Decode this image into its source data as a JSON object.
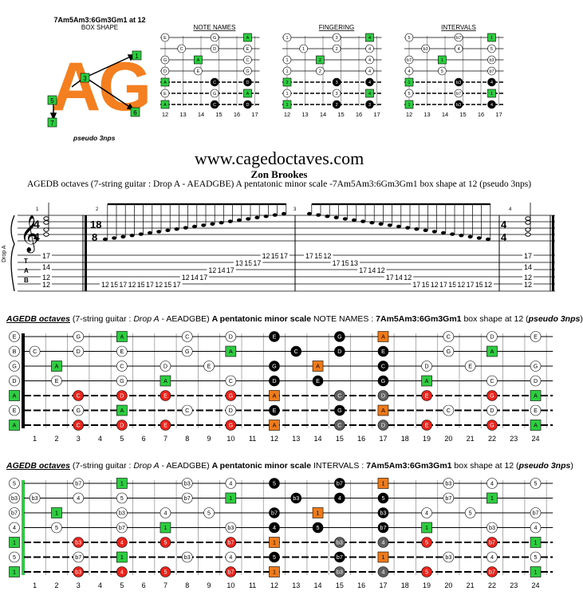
{
  "header": {
    "box_code": "7Am5Am3:6Gm3Gm1 at 12",
    "box_shape": "BOX SHAPE",
    "big_letters": "AG",
    "pseudo": "pseudo 3nps",
    "box_nums": [
      "1",
      "3",
      "5",
      "7",
      "6"
    ]
  },
  "mini": [
    {
      "title": "NOTE NAMES",
      "strings": [
        [
          [
            "E",
            "w"
          ],
          [
            "G",
            "w"
          ],
          [
            "A",
            "g"
          ]
        ],
        [
          [
            "C",
            "w"
          ],
          [
            "D",
            "w"
          ],
          [
            "E",
            "w"
          ]
        ],
        [
          [
            "G",
            "w"
          ],
          [
            "A",
            "g"
          ],
          [
            "C",
            "w"
          ]
        ],
        [
          [
            "D",
            "w"
          ],
          [
            "E",
            "w"
          ],
          [
            "G",
            "w"
          ]
        ],
        [
          [
            "A",
            "g"
          ],
          [
            "C",
            "k"
          ],
          [
            "D",
            "k"
          ]
        ],
        [
          [
            "E",
            "w"
          ],
          [
            "G",
            "w"
          ],
          [
            "A",
            "g"
          ]
        ],
        [
          [
            "A",
            "g"
          ],
          [
            "C",
            "k"
          ],
          [
            "D",
            "k"
          ]
        ]
      ]
    },
    {
      "title": "FINGERING",
      "strings": [
        [
          [
            "1",
            "w"
          ],
          [
            "3",
            "w"
          ],
          [
            "4",
            "g"
          ]
        ],
        [
          [
            "1",
            "w"
          ],
          [
            "2",
            "w"
          ],
          [
            "4",
            "w"
          ]
        ],
        [
          [
            "1",
            "w"
          ],
          [
            "2",
            "g"
          ],
          [
            "4",
            "w"
          ]
        ],
        [
          [
            "1",
            "w"
          ],
          [
            "2",
            "w"
          ],
          [
            "4",
            "w"
          ]
        ],
        [
          [
            "2",
            "g"
          ],
          [
            "3",
            "k"
          ],
          [
            "4",
            "k"
          ]
        ],
        [
          [
            "1",
            "w"
          ],
          [
            "3",
            "w"
          ],
          [
            "4",
            "g"
          ]
        ],
        [
          [
            "1",
            "g"
          ],
          [
            "2",
            "k"
          ],
          [
            "3",
            "k"
          ]
        ]
      ]
    },
    {
      "title": "INTERVALS",
      "strings": [
        [
          [
            "5",
            "w"
          ],
          [
            "b7",
            "w"
          ],
          [
            "1",
            "g"
          ]
        ],
        [
          [
            "b3",
            "w"
          ],
          [
            "4",
            "w"
          ],
          [
            "5",
            "w"
          ]
        ],
        [
          [
            "b7",
            "w"
          ],
          [
            "1",
            "g"
          ],
          [
            "b3",
            "w"
          ]
        ],
        [
          [
            "4",
            "w"
          ],
          [
            "5",
            "w"
          ],
          [
            "b7",
            "w"
          ]
        ],
        [
          [
            "1",
            "g"
          ],
          [
            "b3",
            "k"
          ],
          [
            "4",
            "k"
          ]
        ],
        [
          [
            "5",
            "w"
          ],
          [
            "b7",
            "w"
          ],
          [
            "1",
            "g"
          ]
        ],
        [
          [
            "1",
            "g"
          ],
          [
            "b3",
            "k"
          ],
          [
            "4",
            "k"
          ]
        ]
      ]
    }
  ],
  "mini_frets": [
    "12",
    "13",
    "14",
    "15",
    "16",
    "17"
  ],
  "site": "www.cagedoctaves.com",
  "author": "Zon Brookes",
  "description": "AGEDB octaves (7-string guitar : Drop A - AEADGBE) A pentatonic minor scale -7Am5Am3:6Gm3Gm1 box shape at 12 (pseudo 3nps)",
  "score": {
    "time_top": "4",
    "time_bot": "4",
    "time2_top": "18",
    "time2_bot": "8",
    "tuning": "Drop A",
    "measure_nums": [
      "1",
      "2",
      "3",
      "4"
    ],
    "m1": [
      "17",
      "14",
      "12",
      "12"
    ],
    "m2": [
      "12",
      "15",
      "17",
      "12",
      "15",
      "17",
      "12",
      "15",
      "17",
      "12",
      "14",
      "17",
      "12",
      "14",
      "17",
      "13",
      "15",
      "17",
      "12",
      "15",
      "17"
    ],
    "m3": [
      "17",
      "15",
      "12",
      "17",
      "15",
      "13",
      "17",
      "14",
      "12",
      "17",
      "14",
      "12",
      "17",
      "15",
      "12",
      "17",
      "15",
      "12",
      "17",
      "15",
      "12"
    ],
    "m4": [
      "17",
      "14",
      "12",
      "12"
    ]
  },
  "board1": {
    "t1": "AGEDB octaves",
    "t2": " (7-string guitar : ",
    "t3": "Drop A",
    "t4": " - AEADGBE) ",
    "t5": "A pentatonic minor scale",
    "t6": " NOTE NAMES : ",
    "t7": "7Am5Am3:6Gm3Gm1",
    "t8": " box shape at 12 (",
    "t9": "pseudo 3nps",
    "t10": ")",
    "open": [
      "E",
      "B",
      "G",
      "D",
      "A",
      "E",
      "A"
    ],
    "notes": [
      [
        [
          3,
          "G",
          "w"
        ],
        [
          5,
          "A",
          "g"
        ],
        [
          8,
          "C",
          "w"
        ],
        [
          10,
          "D",
          "w"
        ],
        [
          12,
          "E",
          "k"
        ],
        [
          15,
          "G",
          "k"
        ],
        [
          17,
          "A",
          "o"
        ],
        [
          20,
          "C",
          "w"
        ],
        [
          22,
          "D",
          "w"
        ],
        [
          24,
          "E",
          "w"
        ]
      ],
      [
        [
          1,
          "C",
          "w"
        ],
        [
          3,
          "D",
          "w"
        ],
        [
          5,
          "E",
          "w"
        ],
        [
          8,
          "G",
          "w"
        ],
        [
          10,
          "A",
          "g"
        ],
        [
          13,
          "C",
          "k"
        ],
        [
          15,
          "D",
          "k"
        ],
        [
          17,
          "E",
          "k"
        ],
        [
          20,
          "G",
          "w"
        ],
        [
          22,
          "A",
          "g"
        ]
      ],
      [
        [
          2,
          "A",
          "g"
        ],
        [
          5,
          "C",
          "w"
        ],
        [
          7,
          "D",
          "w"
        ],
        [
          9,
          "E",
          "w"
        ],
        [
          12,
          "G",
          "k"
        ],
        [
          14,
          "A",
          "o"
        ],
        [
          17,
          "C",
          "k"
        ],
        [
          19,
          "D",
          "w"
        ],
        [
          21,
          "E",
          "w"
        ],
        [
          24,
          "G",
          "w"
        ]
      ],
      [
        [
          2,
          "E",
          "w"
        ],
        [
          5,
          "G",
          "w"
        ],
        [
          7,
          "A",
          "g"
        ],
        [
          10,
          "C",
          "w"
        ],
        [
          12,
          "D",
          "k"
        ],
        [
          14,
          "E",
          "k"
        ],
        [
          17,
          "G",
          "k"
        ],
        [
          19,
          "A",
          "g"
        ],
        [
          22,
          "C",
          "w"
        ],
        [
          24,
          "D",
          "w"
        ]
      ],
      [
        [
          3,
          "C",
          "r"
        ],
        [
          5,
          "D",
          "r"
        ],
        [
          7,
          "E",
          "r"
        ],
        [
          10,
          "G",
          "r"
        ],
        [
          12,
          "A",
          "o"
        ],
        [
          15,
          "C",
          "d"
        ],
        [
          17,
          "D",
          "d"
        ],
        [
          19,
          "E",
          "r"
        ],
        [
          22,
          "G",
          "r"
        ],
        [
          24,
          "A",
          "g"
        ]
      ],
      [
        [
          3,
          "G",
          "w"
        ],
        [
          5,
          "A",
          "g"
        ],
        [
          8,
          "C",
          "w"
        ],
        [
          10,
          "D",
          "w"
        ],
        [
          12,
          "E",
          "k"
        ],
        [
          15,
          "G",
          "k"
        ],
        [
          17,
          "A",
          "o"
        ],
        [
          20,
          "C",
          "w"
        ],
        [
          22,
          "D",
          "w"
        ],
        [
          24,
          "E",
          "w"
        ]
      ],
      [
        [
          3,
          "C",
          "r"
        ],
        [
          5,
          "D",
          "r"
        ],
        [
          7,
          "E",
          "r"
        ],
        [
          10,
          "G",
          "r"
        ],
        [
          12,
          "A",
          "o"
        ],
        [
          15,
          "C",
          "d"
        ],
        [
          17,
          "D",
          "d"
        ],
        [
          19,
          "E",
          "r"
        ],
        [
          22,
          "G",
          "r"
        ],
        [
          24,
          "A",
          "g"
        ]
      ]
    ]
  },
  "board2": {
    "t1": "AGEDB octaves",
    "t2": " (7-string guitar : ",
    "t3": "Drop A",
    "t4": " - AEADGBE) ",
    "t5": "A pentatonic minor scale",
    "t6": " INTERVALS : ",
    "t7": "7Am5Am3:6Gm3Gm1",
    "t8": " box shape at 12 (",
    "t9": "pseudo 3nps",
    "t10": ")",
    "open": [
      "5",
      "b3",
      "b7",
      "4",
      "1",
      "5",
      "1"
    ],
    "notes": [
      [
        [
          3,
          "b7",
          "w"
        ],
        [
          5,
          "1",
          "g"
        ],
        [
          8,
          "b3",
          "w"
        ],
        [
          10,
          "4",
          "w"
        ],
        [
          12,
          "5",
          "k"
        ],
        [
          15,
          "b7",
          "k"
        ],
        [
          17,
          "1",
          "o"
        ],
        [
          20,
          "b3",
          "w"
        ],
        [
          22,
          "4",
          "w"
        ],
        [
          24,
          "5",
          "w"
        ]
      ],
      [
        [
          1,
          "b3",
          "w"
        ],
        [
          3,
          "4",
          "w"
        ],
        [
          5,
          "5",
          "w"
        ],
        [
          8,
          "b7",
          "w"
        ],
        [
          10,
          "1",
          "g"
        ],
        [
          13,
          "b3",
          "k"
        ],
        [
          15,
          "4",
          "k"
        ],
        [
          17,
          "5",
          "k"
        ],
        [
          20,
          "b7",
          "w"
        ],
        [
          22,
          "1",
          "g"
        ]
      ],
      [
        [
          2,
          "1",
          "g"
        ],
        [
          5,
          "b3",
          "w"
        ],
        [
          7,
          "4",
          "w"
        ],
        [
          9,
          "5",
          "w"
        ],
        [
          12,
          "b7",
          "k"
        ],
        [
          14,
          "1",
          "o"
        ],
        [
          17,
          "b3",
          "k"
        ],
        [
          19,
          "4",
          "w"
        ],
        [
          21,
          "5",
          "w"
        ],
        [
          24,
          "b7",
          "w"
        ]
      ],
      [
        [
          2,
          "5",
          "w"
        ],
        [
          5,
          "b7",
          "w"
        ],
        [
          7,
          "1",
          "g"
        ],
        [
          10,
          "b3",
          "w"
        ],
        [
          12,
          "4",
          "k"
        ],
        [
          14,
          "5",
          "k"
        ],
        [
          17,
          "b7",
          "k"
        ],
        [
          19,
          "1",
          "g"
        ],
        [
          22,
          "b3",
          "w"
        ],
        [
          24,
          "4",
          "w"
        ]
      ],
      [
        [
          3,
          "b3",
          "r"
        ],
        [
          5,
          "4",
          "r"
        ],
        [
          7,
          "5",
          "r"
        ],
        [
          10,
          "b7",
          "r"
        ],
        [
          12,
          "1",
          "o"
        ],
        [
          15,
          "b3",
          "d"
        ],
        [
          17,
          "4",
          "d"
        ],
        [
          19,
          "5",
          "r"
        ],
        [
          22,
          "b7",
          "r"
        ],
        [
          24,
          "1",
          "g"
        ]
      ],
      [
        [
          3,
          "b7",
          "w"
        ],
        [
          5,
          "1",
          "g"
        ],
        [
          8,
          "b3",
          "w"
        ],
        [
          10,
          "4",
          "w"
        ],
        [
          12,
          "5",
          "k"
        ],
        [
          15,
          "b7",
          "k"
        ],
        [
          17,
          "1",
          "o"
        ],
        [
          20,
          "b3",
          "w"
        ],
        [
          22,
          "4",
          "w"
        ],
        [
          24,
          "5",
          "w"
        ]
      ],
      [
        [
          3,
          "b3",
          "r"
        ],
        [
          5,
          "4",
          "r"
        ],
        [
          7,
          "5",
          "r"
        ],
        [
          10,
          "b7",
          "r"
        ],
        [
          12,
          "1",
          "o"
        ],
        [
          15,
          "b3",
          "d"
        ],
        [
          17,
          "4",
          "d"
        ],
        [
          19,
          "5",
          "r"
        ],
        [
          22,
          "b7",
          "r"
        ],
        [
          24,
          "1",
          "g"
        ]
      ]
    ]
  },
  "fret_numbers": [
    "1",
    "2",
    "3",
    "4",
    "5",
    "6",
    "7",
    "8",
    "9",
    "10",
    "11",
    "12",
    "13",
    "14",
    "15",
    "16",
    "17",
    "18",
    "19",
    "20",
    "21",
    "22",
    "23",
    "24"
  ],
  "colors": {
    "green": "#2ecc40",
    "orange": "#ee7a1a",
    "red": "#e8241c",
    "black": "#000000",
    "gray": "#606060",
    "big": "#f47f20"
  }
}
